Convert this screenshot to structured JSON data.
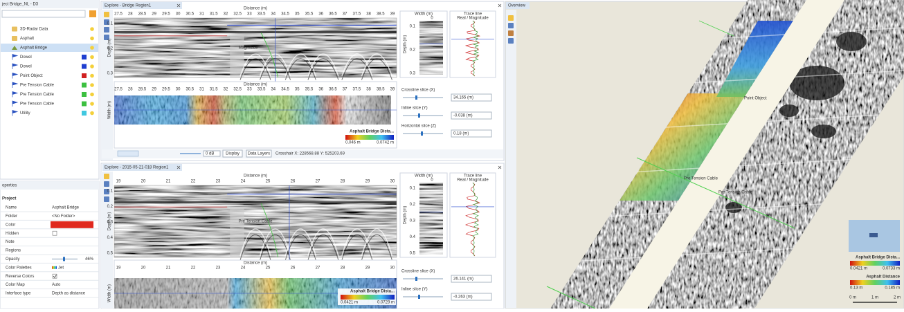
{
  "project_tree": {
    "title": "ject Bridge_NL - D3",
    "items": [
      {
        "label": "3D-Radar Data",
        "icon": "folder"
      },
      {
        "label": "Asphalt",
        "icon": "folder"
      },
      {
        "label": "Asphalt Bridge",
        "icon": "layer",
        "selected": true
      },
      {
        "label": "Dowel",
        "color": "#1f3fd0"
      },
      {
        "label": "Dowel",
        "color": "#1f3fd0"
      },
      {
        "label": "Point Object",
        "color": "#d02020"
      },
      {
        "label": "Pre Tension Cable",
        "color": "#3cc040"
      },
      {
        "label": "Pre Tension Cable",
        "color": "#3cc040"
      },
      {
        "label": "Pre Tension Cable",
        "color": "#3cc040"
      },
      {
        "label": "Utility",
        "color": "#40c8e0"
      }
    ]
  },
  "properties": {
    "title": "operties",
    "section": "Project",
    "rows": [
      {
        "label": "Name",
        "value": "Asphalt Bridge"
      },
      {
        "label": "Folder",
        "value": "<No Folder>"
      },
      {
        "label": "Color",
        "color": "#e0281e"
      },
      {
        "label": "Hidden",
        "checked": false
      },
      {
        "label": "Note"
      },
      {
        "label": "Regions"
      },
      {
        "label": "Opacity",
        "value": "46%"
      },
      {
        "label": "Color Palettes",
        "value": "Jet"
      },
      {
        "label": "Reverse Colors",
        "checked": true
      },
      {
        "label": "Color Map",
        "value": "Auto"
      },
      {
        "label": "Interface type",
        "value": "Depth as distance"
      }
    ]
  },
  "explore_top": {
    "tab": "Explore - Bridge Region1",
    "axis_label": "Distance (m)",
    "distance_ticks": [
      "27.5",
      "28",
      "28.5",
      "29",
      "29.5",
      "30",
      "30.5",
      "31",
      "31.5",
      "32",
      "32.5",
      "33",
      "33.5",
      "34",
      "34.5",
      "35",
      "35.5",
      "36",
      "36.5",
      "37",
      "37.5",
      "38",
      "38.5",
      "39"
    ],
    "depth_label": "Depth (m)",
    "depth_ticks": [
      "0.1",
      "0.2",
      "0.3"
    ],
    "width_label": "Width (m)",
    "width_tick": "0",
    "trace_title": "Trace line",
    "trace_mode": "Real / Magnitude",
    "annotation": "Magnitude",
    "slice_axis_label": "Distance (m)",
    "slices": [
      {
        "label": "Crossline slice (X)",
        "value": "34.165 (m)"
      },
      {
        "label": "Inline slice (Y)",
        "value": "-0.038 (m)"
      },
      {
        "label": "Horizontal slice (Z)",
        "value": "0.18 (m)"
      }
    ],
    "legend": {
      "title": "Asphalt Bridge Dista...",
      "min": "0.046 m",
      "max": "0.0742 m"
    },
    "toolbar": {
      "gain": "0 dB",
      "display": "Display",
      "layers": "Data Layers",
      "crosshair": "Crosshair X: 228568.88 Y: 525203.69"
    }
  },
  "explore_bottom": {
    "tab": "Explore - 2015-05-21-018 Region1",
    "axis_label": "Distance (m)",
    "distance_ticks": [
      "19",
      "20",
      "21",
      "22",
      "23",
      "24",
      "25",
      "26",
      "27",
      "28",
      "29",
      "30"
    ],
    "depth_label": "Depth (m)",
    "depth_ticks": [
      "0.1",
      "0.2",
      "0.3",
      "0.4",
      "0.5"
    ],
    "width_label": "Width (m)",
    "width_tick": "0",
    "trace_title": "Trace line",
    "trace_mode": "Real / Magnitude",
    "annotation": "Pre Tension Cable",
    "slice_axis_label": "Distance (m)",
    "slices": [
      {
        "label": "Crossline slice (X)",
        "value": "26.141 (m)"
      },
      {
        "label": "Inline slice (Y)",
        "value": "-0.263 (m)"
      }
    ],
    "legend": {
      "title": "Asphalt Bridge Dista...",
      "min": "0.0421 m",
      "max": "0.0729 m"
    }
  },
  "overview": {
    "title": "Overview",
    "labels": [
      "Point Object",
      "Pre Tension Cable",
      "Pre Tension Cable"
    ],
    "legends": [
      {
        "title": "Asphalt Bridge Dista...",
        "min": "0.0421 m",
        "max": "0.0733 m"
      },
      {
        "title": "Asphalt Distance",
        "min": "0.13 m",
        "max": "0.185 m"
      }
    ],
    "scale": [
      "0 m",
      "1 m",
      "2 m"
    ]
  }
}
